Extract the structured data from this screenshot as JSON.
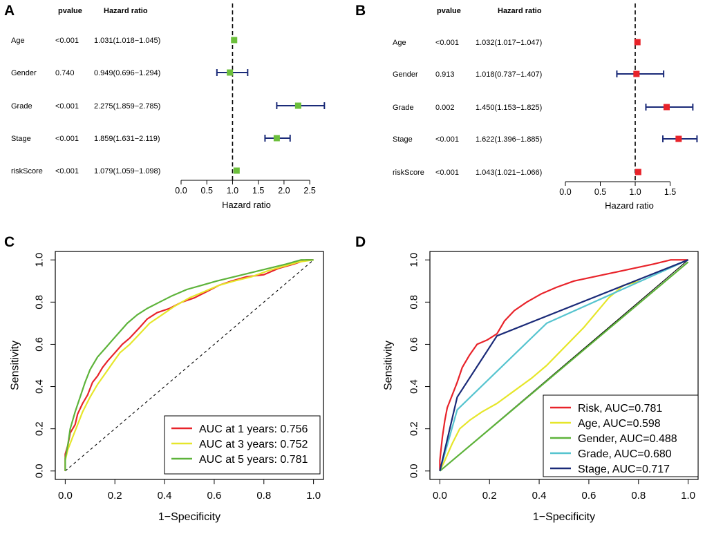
{
  "colors": {
    "panelA_marker": "#6cbf3c",
    "panelB_marker": "#e8232a",
    "ci_line": "#1a2a78"
  },
  "chart_data": [
    {
      "id": "A",
      "type": "forest",
      "panel_label": "A",
      "headers": {
        "pvalue": "pvalue",
        "hr": "Hazard ratio"
      },
      "xlabel": "Hazard ratio",
      "xlim": [
        0,
        2.7
      ],
      "xticks": [
        "0.0",
        "0.5",
        "1.0",
        "1.5",
        "2.0",
        "2.5"
      ],
      "reference_line": 1,
      "rows": [
        {
          "label": "Age",
          "pvalue": "<0.001",
          "hr_text": "1.031(1.018−1.045)",
          "hr": 1.031,
          "low": 1.018,
          "high": 1.045
        },
        {
          "label": "Gender",
          "pvalue": "0.740",
          "hr_text": "0.949(0.696−1.294)",
          "hr": 0.949,
          "low": 0.696,
          "high": 1.294
        },
        {
          "label": "Grade",
          "pvalue": "<0.001",
          "hr_text": "2.275(1.859−2.785)",
          "hr": 2.275,
          "low": 1.859,
          "high": 2.785
        },
        {
          "label": "Stage",
          "pvalue": "<0.001",
          "hr_text": "1.859(1.631−2.119)",
          "hr": 1.859,
          "low": 1.631,
          "high": 2.119
        },
        {
          "label": "riskScore",
          "pvalue": "<0.001",
          "hr_text": "1.079(1.059−1.098)",
          "hr": 1.079,
          "low": 1.059,
          "high": 1.098
        }
      ]
    },
    {
      "id": "B",
      "type": "forest",
      "panel_label": "B",
      "headers": {
        "pvalue": "pvalue",
        "hr": "Hazard ratio"
      },
      "xlabel": "Hazard ratio",
      "xlim": [
        0,
        1.95
      ],
      "xticks": [
        "0.0",
        "0.5",
        "1.0",
        "1.5"
      ],
      "reference_line": 1,
      "rows": [
        {
          "label": "Age",
          "pvalue": "<0.001",
          "hr_text": "1.032(1.017−1.047)",
          "hr": 1.032,
          "low": 1.017,
          "high": 1.047
        },
        {
          "label": "Gender",
          "pvalue": "0.913",
          "hr_text": "1.018(0.737−1.407)",
          "hr": 1.018,
          "low": 0.737,
          "high": 1.407
        },
        {
          "label": "Grade",
          "pvalue": "0.002",
          "hr_text": "1.450(1.153−1.825)",
          "hr": 1.45,
          "low": 1.153,
          "high": 1.825
        },
        {
          "label": "Stage",
          "pvalue": "<0.001",
          "hr_text": "1.622(1.396−1.885)",
          "hr": 1.622,
          "low": 1.396,
          "high": 1.885
        },
        {
          "label": "riskScore",
          "pvalue": "<0.001",
          "hr_text": "1.043(1.021−1.066)",
          "hr": 1.043,
          "low": 1.021,
          "high": 1.066
        }
      ]
    },
    {
      "id": "C",
      "type": "line",
      "panel_label": "C",
      "xlabel": "1−Specificity",
      "ylabel": "Sensitivity",
      "xlim": [
        -0.04,
        1.04
      ],
      "ylim": [
        -0.04,
        1.04
      ],
      "xticks": [
        "0.0",
        "0.2",
        "0.4",
        "0.6",
        "0.8",
        "1.0"
      ],
      "yticks": [
        "0.0",
        "0.2",
        "0.4",
        "0.6",
        "0.8",
        "1.0"
      ],
      "diagonal": "dashed",
      "legend_position": "bottom-right",
      "series": [
        {
          "name": "AUC at 1 years: 0.756",
          "color": "#e8232a",
          "points": [
            [
              0,
              0
            ],
            [
              0,
              0.08
            ],
            [
              0.01,
              0.12
            ],
            [
              0.02,
              0.18
            ],
            [
              0.04,
              0.22
            ],
            [
              0.05,
              0.27
            ],
            [
              0.07,
              0.32
            ],
            [
              0.09,
              0.36
            ],
            [
              0.11,
              0.42
            ],
            [
              0.13,
              0.45
            ],
            [
              0.15,
              0.49
            ],
            [
              0.17,
              0.52
            ],
            [
              0.2,
              0.56
            ],
            [
              0.23,
              0.6
            ],
            [
              0.26,
              0.63
            ],
            [
              0.3,
              0.68
            ],
            [
              0.33,
              0.72
            ],
            [
              0.37,
              0.75
            ],
            [
              0.42,
              0.77
            ],
            [
              0.47,
              0.8
            ],
            [
              0.52,
              0.82
            ],
            [
              0.57,
              0.85
            ],
            [
              0.62,
              0.88
            ],
            [
              0.67,
              0.9
            ],
            [
              0.73,
              0.92
            ],
            [
              0.8,
              0.93
            ],
            [
              0.86,
              0.96
            ],
            [
              0.92,
              0.98
            ],
            [
              0.97,
              1
            ],
            [
              1,
              1
            ]
          ]
        },
        {
          "name": "AUC at 3 years: 0.752",
          "color": "#e6e62a",
          "points": [
            [
              0,
              0
            ],
            [
              0,
              0.05
            ],
            [
              0.01,
              0.1
            ],
            [
              0.03,
              0.16
            ],
            [
              0.05,
              0.22
            ],
            [
              0.07,
              0.28
            ],
            [
              0.1,
              0.35
            ],
            [
              0.13,
              0.41
            ],
            [
              0.16,
              0.46
            ],
            [
              0.19,
              0.51
            ],
            [
              0.22,
              0.56
            ],
            [
              0.26,
              0.6
            ],
            [
              0.3,
              0.65
            ],
            [
              0.34,
              0.7
            ],
            [
              0.39,
              0.74
            ],
            [
              0.44,
              0.78
            ],
            [
              0.5,
              0.82
            ],
            [
              0.56,
              0.85
            ],
            [
              0.62,
              0.88
            ],
            [
              0.68,
              0.9
            ],
            [
              0.75,
              0.92
            ],
            [
              0.82,
              0.95
            ],
            [
              0.88,
              0.97
            ],
            [
              0.94,
              0.99
            ],
            [
              1,
              1
            ]
          ]
        },
        {
          "name": "AUC at 5 years: 0.781",
          "color": "#5db33a",
          "points": [
            [
              0,
              0
            ],
            [
              0,
              0.06
            ],
            [
              0.01,
              0.12
            ],
            [
              0.02,
              0.2
            ],
            [
              0.04,
              0.28
            ],
            [
              0.06,
              0.35
            ],
            [
              0.08,
              0.42
            ],
            [
              0.1,
              0.48
            ],
            [
              0.13,
              0.54
            ],
            [
              0.16,
              0.58
            ],
            [
              0.19,
              0.62
            ],
            [
              0.22,
              0.66
            ],
            [
              0.25,
              0.7
            ],
            [
              0.29,
              0.74
            ],
            [
              0.33,
              0.77
            ],
            [
              0.38,
              0.8
            ],
            [
              0.43,
              0.83
            ],
            [
              0.49,
              0.86
            ],
            [
              0.55,
              0.88
            ],
            [
              0.61,
              0.9
            ],
            [
              0.68,
              0.92
            ],
            [
              0.75,
              0.94
            ],
            [
              0.82,
              0.96
            ],
            [
              0.89,
              0.98
            ],
            [
              0.95,
              1
            ],
            [
              1,
              1
            ]
          ]
        }
      ]
    },
    {
      "id": "D",
      "type": "line",
      "panel_label": "D",
      "xlabel": "1−Specificity",
      "ylabel": "Sensitivity",
      "xlim": [
        -0.04,
        1.04
      ],
      "ylim": [
        -0.04,
        1.04
      ],
      "xticks": [
        "0.0",
        "0.2",
        "0.4",
        "0.6",
        "0.8",
        "1.0"
      ],
      "yticks": [
        "0.0",
        "0.2",
        "0.4",
        "0.6",
        "0.8",
        "1.0"
      ],
      "diagonal": "solid",
      "legend_position": "bottom-right",
      "series": [
        {
          "name": "Risk, AUC=0.781",
          "color": "#e8232a",
          "points": [
            [
              0,
              0
            ],
            [
              0,
              0.05
            ],
            [
              0.01,
              0.16
            ],
            [
              0.02,
              0.24
            ],
            [
              0.03,
              0.3
            ],
            [
              0.05,
              0.36
            ],
            [
              0.07,
              0.42
            ],
            [
              0.09,
              0.49
            ],
            [
              0.12,
              0.55
            ],
            [
              0.15,
              0.6
            ],
            [
              0.19,
              0.62
            ],
            [
              0.23,
              0.65
            ],
            [
              0.26,
              0.71
            ],
            [
              0.3,
              0.76
            ],
            [
              0.35,
              0.8
            ],
            [
              0.41,
              0.84
            ],
            [
              0.47,
              0.87
            ],
            [
              0.54,
              0.9
            ],
            [
              0.62,
              0.92
            ],
            [
              0.7,
              0.94
            ],
            [
              0.78,
              0.96
            ],
            [
              0.86,
              0.98
            ],
            [
              0.93,
              1
            ],
            [
              1,
              1
            ]
          ]
        },
        {
          "name": "Age, AUC=0.598",
          "color": "#e6e62a",
          "points": [
            [
              0,
              0
            ],
            [
              0.02,
              0.05
            ],
            [
              0.05,
              0.13
            ],
            [
              0.08,
              0.2
            ],
            [
              0.12,
              0.24
            ],
            [
              0.17,
              0.28
            ],
            [
              0.23,
              0.32
            ],
            [
              0.3,
              0.38
            ],
            [
              0.37,
              0.44
            ],
            [
              0.43,
              0.5
            ],
            [
              0.48,
              0.56
            ],
            [
              0.53,
              0.62
            ],
            [
              0.58,
              0.68
            ],
            [
              0.63,
              0.75
            ],
            [
              0.68,
              0.82
            ],
            [
              0.74,
              0.88
            ],
            [
              0.81,
              0.9
            ]
          ]
        },
        {
          "name": "Gender, AUC=0.488",
          "color": "#5db33a",
          "points": [
            [
              0,
              0
            ],
            [
              1,
              0.99
            ]
          ]
        },
        {
          "name": "Grade, AUC=0.680",
          "color": "#56c4cf",
          "points": [
            [
              0,
              0
            ],
            [
              0.07,
              0.29
            ],
            [
              0.43,
              0.7
            ],
            [
              1,
              1
            ]
          ]
        },
        {
          "name": "Stage, AUC=0.717",
          "color": "#1a2a78",
          "points": [
            [
              0,
              0
            ],
            [
              0.07,
              0.35
            ],
            [
              0.23,
              0.64
            ],
            [
              1,
              1
            ]
          ]
        }
      ]
    }
  ]
}
